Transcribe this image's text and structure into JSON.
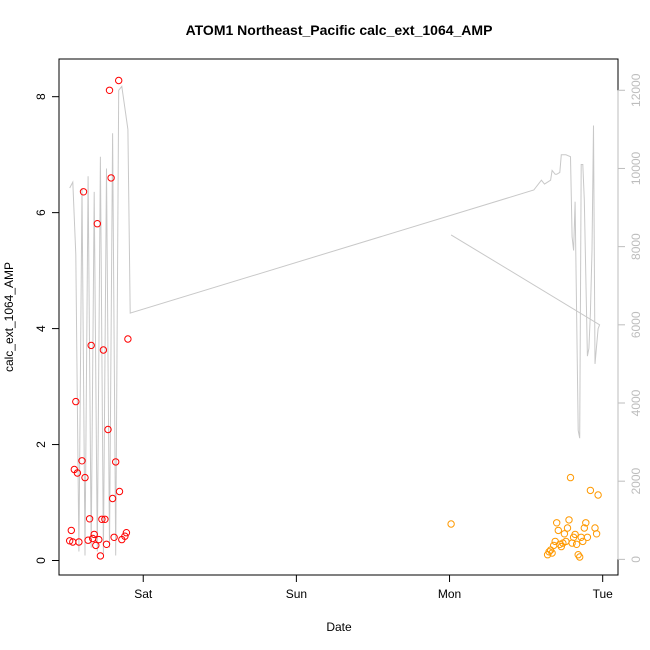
{
  "chart_data": {
    "type": "scatter",
    "title": "ATOM1 Northeast_Pacific calc_ext_1064_AMP",
    "xlabel": "Date",
    "ylabel": "calc_ext_1064_AMP",
    "x_ticks": [
      {
        "value": 1.0,
        "label": "Sat"
      },
      {
        "value": 2.0,
        "label": "Sun"
      },
      {
        "value": 3.0,
        "label": "Mon"
      },
      {
        "value": 4.0,
        "label": "Tue"
      }
    ],
    "xlim": [
      0.45,
      4.1
    ],
    "ylim": [
      -0.25,
      8.65
    ],
    "y_ticks": [
      0,
      2,
      4,
      6,
      8
    ],
    "y2_ticks": [
      0,
      2000,
      4000,
      6000,
      8000,
      10000,
      12000
    ],
    "y2lim": [
      -400,
      12800
    ],
    "grid": false,
    "colors": {
      "series_1": "#ff0000",
      "series_2": "#ff9900",
      "secondary_line": "#c8c8c8",
      "axis": "#000000",
      "secondary_axis": "#bdbdbd"
    },
    "series": [
      {
        "color": "#ff0000",
        "marker": "open-circle",
        "points": [
          [
            0.52,
            0.34
          ],
          [
            0.53,
            0.52
          ],
          [
            0.54,
            0.32
          ],
          [
            0.55,
            1.57
          ],
          [
            0.56,
            2.74
          ],
          [
            0.57,
            1.51
          ],
          [
            0.58,
            0.32
          ],
          [
            0.6,
            1.72
          ],
          [
            0.61,
            6.36
          ],
          [
            0.62,
            1.43
          ],
          [
            0.64,
            0.35
          ],
          [
            0.65,
            0.72
          ],
          [
            0.66,
            3.71
          ],
          [
            0.67,
            0.38
          ],
          [
            0.68,
            0.45
          ],
          [
            0.69,
            0.26
          ],
          [
            0.7,
            5.81
          ],
          [
            0.71,
            0.36
          ],
          [
            0.72,
            0.08
          ],
          [
            0.73,
            0.71
          ],
          [
            0.74,
            3.63
          ],
          [
            0.75,
            0.71
          ],
          [
            0.76,
            0.28
          ],
          [
            0.77,
            2.26
          ],
          [
            0.78,
            8.11
          ],
          [
            0.79,
            6.6
          ],
          [
            0.8,
            1.07
          ],
          [
            0.81,
            0.4
          ],
          [
            0.82,
            1.7
          ],
          [
            0.84,
            8.28
          ],
          [
            0.845,
            1.19
          ],
          [
            0.86,
            0.36
          ],
          [
            0.88,
            0.42
          ],
          [
            0.89,
            0.48
          ],
          [
            0.9,
            3.82
          ]
        ]
      },
      {
        "color": "#ff9900",
        "marker": "open-circle",
        "points": [
          [
            3.01,
            0.63
          ],
          [
            3.64,
            0.1
          ],
          [
            3.65,
            0.15
          ],
          [
            3.66,
            0.18
          ],
          [
            3.67,
            0.13
          ],
          [
            3.68,
            0.26
          ],
          [
            3.69,
            0.33
          ],
          [
            3.7,
            0.65
          ],
          [
            3.71,
            0.52
          ],
          [
            3.72,
            0.28
          ],
          [
            3.73,
            0.24
          ],
          [
            3.74,
            0.3
          ],
          [
            3.75,
            0.46
          ],
          [
            3.76,
            0.33
          ],
          [
            3.77,
            0.56
          ],
          [
            3.78,
            0.7
          ],
          [
            3.79,
            1.43
          ],
          [
            3.8,
            0.3
          ],
          [
            3.81,
            0.4
          ],
          [
            3.82,
            0.45
          ],
          [
            3.83,
            0.28
          ],
          [
            3.84,
            0.1
          ],
          [
            3.85,
            0.06
          ],
          [
            3.86,
            0.4
          ],
          [
            3.87,
            0.33
          ],
          [
            3.88,
            0.56
          ],
          [
            3.89,
            0.65
          ],
          [
            3.9,
            0.4
          ],
          [
            3.92,
            1.21
          ],
          [
            3.95,
            0.56
          ],
          [
            3.96,
            0.46
          ],
          [
            3.97,
            1.13
          ]
        ]
      }
    ],
    "secondary_line": {
      "color": "#c8c8c8",
      "axis": "right",
      "points": [
        [
          0.52,
          9500
        ],
        [
          0.54,
          9650
        ],
        [
          0.56,
          7800
        ],
        [
          0.58,
          200
        ],
        [
          0.6,
          9500
        ],
        [
          0.62,
          100
        ],
        [
          0.64,
          9800
        ],
        [
          0.66,
          300
        ],
        [
          0.68,
          9400
        ],
        [
          0.7,
          200
        ],
        [
          0.72,
          10300
        ],
        [
          0.74,
          150
        ],
        [
          0.76,
          10000
        ],
        [
          0.78,
          300
        ],
        [
          0.8,
          10900
        ],
        [
          0.82,
          100
        ],
        [
          0.84,
          12000
        ],
        [
          0.86,
          12100
        ],
        [
          0.9,
          11000
        ],
        [
          0.915,
          6300
        ],
        [
          3.55,
          9450
        ],
        [
          3.6,
          9700
        ],
        [
          3.62,
          9600
        ],
        [
          3.66,
          9700
        ],
        [
          3.67,
          9950
        ],
        [
          3.69,
          9850
        ],
        [
          3.7,
          9850
        ],
        [
          3.72,
          9900
        ],
        [
          3.73,
          10350
        ],
        [
          3.76,
          10350
        ],
        [
          3.79,
          10300
        ],
        [
          3.8,
          8250
        ],
        [
          3.81,
          7900
        ],
        [
          3.82,
          9150
        ],
        [
          3.84,
          3300
        ],
        [
          3.85,
          3100
        ],
        [
          3.86,
          10100
        ],
        [
          3.87,
          10100
        ],
        [
          3.88,
          9200
        ],
        [
          3.9,
          5200
        ],
        [
          3.91,
          5400
        ],
        [
          3.92,
          6300
        ],
        [
          3.93,
          7900
        ],
        [
          3.94,
          11100
        ],
        [
          3.95,
          5000
        ],
        [
          3.97,
          5900
        ],
        [
          3.98,
          6000
        ],
        [
          3.01,
          8300
        ]
      ]
    }
  }
}
